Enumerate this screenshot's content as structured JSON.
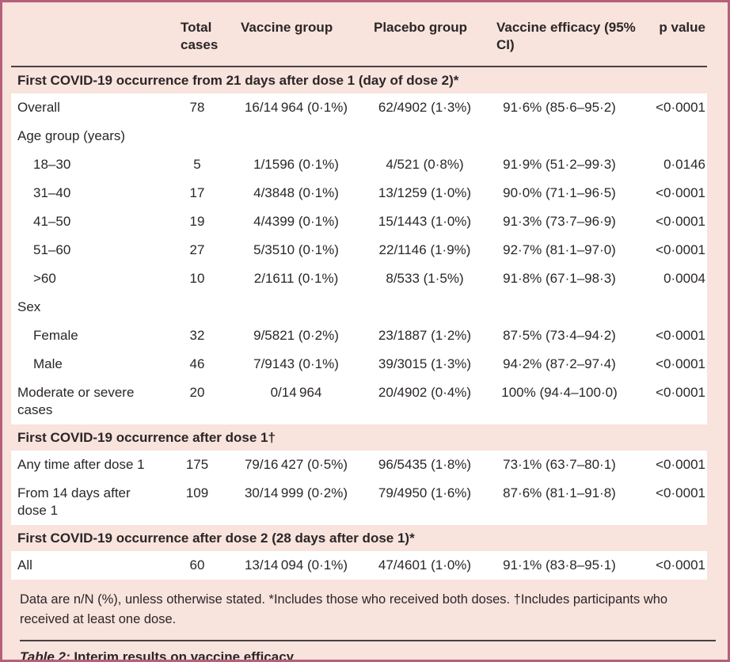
{
  "colors": {
    "page_background": "#f8e3dd",
    "border": "#b5607b",
    "row_background": "#ffffff",
    "rule": "#474143",
    "text": "#2b2627"
  },
  "table": {
    "column_headers": {
      "label": "",
      "total": "Total cases",
      "vaccine": "Vaccine group",
      "placebo": "Placebo group",
      "efficacy": "Vaccine efficacy (95% CI)",
      "p": "p value"
    },
    "sections": [
      {
        "header": "First COVID-19 occurrence from 21 days after dose 1 (day of dose 2)*",
        "rows": [
          {
            "label": "Overall",
            "indent": false,
            "total": "78",
            "vaccine": "16/14 964 (0·1%)",
            "placebo": "62/4902 (1·3%)",
            "efficacy": "91·6% (85·6–95·2)",
            "p": "<0·0001"
          },
          {
            "label": "Age group (years)",
            "indent": false,
            "total": "",
            "vaccine": "",
            "placebo": "",
            "efficacy": "",
            "p": ""
          },
          {
            "label": "18–30",
            "indent": true,
            "total": "5",
            "vaccine": "1/1596 (0·1%)",
            "placebo": "4/521 (0·8%)",
            "efficacy": "91·9% (51·2–99·3)",
            "p": "0·0146"
          },
          {
            "label": "31–40",
            "indent": true,
            "total": "17",
            "vaccine": "4/3848 (0·1%)",
            "placebo": "13/1259 (1·0%)",
            "efficacy": "90·0% (71·1–96·5)",
            "p": "<0·0001"
          },
          {
            "label": "41–50",
            "indent": true,
            "total": "19",
            "vaccine": "4/4399 (0·1%)",
            "placebo": "15/1443 (1·0%)",
            "efficacy": "91·3% (73·7–96·9)",
            "p": "<0·0001"
          },
          {
            "label": "51–60",
            "indent": true,
            "total": "27",
            "vaccine": "5/3510 (0·1%)",
            "placebo": "22/1146 (1·9%)",
            "efficacy": "92·7% (81·1–97·0)",
            "p": "<0·0001"
          },
          {
            "label": ">60",
            "indent": true,
            "total": "10",
            "vaccine": "2/1611 (0·1%)",
            "placebo": "8/533 (1·5%)",
            "efficacy": "91·8% (67·1–98·3)",
            "p": "0·0004"
          },
          {
            "label": "Sex",
            "indent": false,
            "total": "",
            "vaccine": "",
            "placebo": "",
            "efficacy": "",
            "p": ""
          },
          {
            "label": "Female",
            "indent": true,
            "total": "32",
            "vaccine": "9/5821 (0·2%)",
            "placebo": "23/1887 (1·2%)",
            "efficacy": "87·5% (73·4–94·2)",
            "p": "<0·0001"
          },
          {
            "label": "Male",
            "indent": true,
            "total": "46",
            "vaccine": "7/9143 (0·1%)",
            "placebo": "39/3015 (1·3%)",
            "efficacy": "94·2% (87·2–97·4)",
            "p": "<0·0001"
          },
          {
            "label": "Moderate or severe cases",
            "indent": false,
            "total": "20",
            "vaccine": "0/14 964",
            "placebo": "20/4902 (0·4%)",
            "efficacy": "100% (94·4–100·0)",
            "p": "<0·0001"
          }
        ]
      },
      {
        "header": "First COVID-19 occurrence after dose 1†",
        "rows": [
          {
            "label": "Any time after dose 1",
            "indent": false,
            "total": "175",
            "vaccine": "79/16 427 (0·5%)",
            "placebo": "96/5435 (1·8%)",
            "efficacy": "73·1% (63·7–80·1)",
            "p": "<0·0001"
          },
          {
            "label": "From 14 days after dose 1",
            "indent": false,
            "total": "109",
            "vaccine": "30/14 999 (0·2%)",
            "placebo": "79/4950 (1·6%)",
            "efficacy": "87·6% (81·1–91·8)",
            "p": "<0·0001"
          }
        ]
      },
      {
        "header": "First COVID-19 occurrence after dose 2 (28 days after dose 1)*",
        "rows": [
          {
            "label": "All",
            "indent": false,
            "total": "60",
            "vaccine": "13/14 094 (0·1%)",
            "placebo": "47/4601 (1·0%)",
            "efficacy": "91·1% (83·8–95·1)",
            "p": "<0·0001"
          }
        ]
      }
    ]
  },
  "footnote": "Data are n/N (%), unless otherwise stated. *Includes those who received both doses. †Includes participants who received at least one dose.",
  "caption": {
    "prefix": "Table 2:",
    "text": " Interim results on vaccine efficacy"
  }
}
